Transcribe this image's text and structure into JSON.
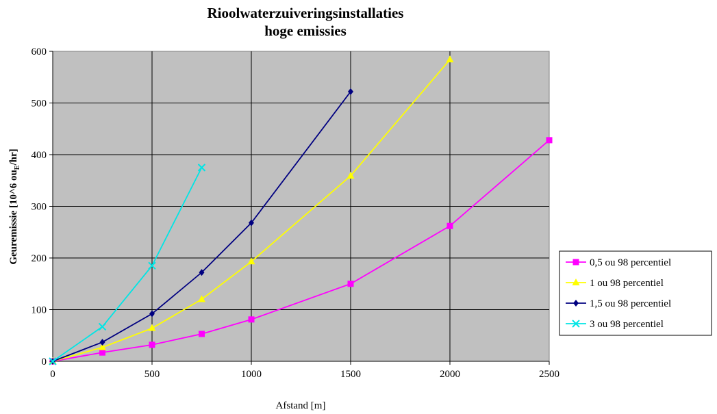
{
  "chart_data": {
    "type": "line",
    "title": "Rioolwaterzuiveringsinstallaties",
    "subtitle": "hoge emissies",
    "xlabel": "Afstand [m]",
    "ylabel_main": "Geuremissie [10^6 ou",
    "ylabel_sub": "E",
    "ylabel_end": "/hr]",
    "xlim": [
      0,
      2500
    ],
    "ylim": [
      0,
      600
    ],
    "xticks": [
      0,
      500,
      1000,
      1500,
      2000,
      2500
    ],
    "yticks": [
      0,
      100,
      200,
      300,
      400,
      500,
      600
    ],
    "grid": true,
    "legend_position": "right",
    "plot_background": "#c0c0c0",
    "series": [
      {
        "name": "0,5 ou 98 percentiel",
        "color": "#ff00ff",
        "marker": "square",
        "x": [
          0,
          250,
          500,
          750,
          1000,
          1500,
          2000,
          2500
        ],
        "y": [
          0,
          17,
          32,
          53,
          81,
          150,
          262,
          428
        ]
      },
      {
        "name": "1 ou 98 percentiel",
        "color": "#ffff00",
        "marker": "triangle",
        "x": [
          0,
          250,
          500,
          750,
          1000,
          1500,
          2000
        ],
        "y": [
          0,
          27,
          64,
          120,
          193,
          359,
          584
        ]
      },
      {
        "name": "1,5 ou 98 percentiel",
        "color": "#000080",
        "marker": "diamond",
        "x": [
          0,
          250,
          500,
          750,
          1000,
          1500
        ],
        "y": [
          0,
          37,
          92,
          172,
          268,
          522
        ]
      },
      {
        "name": "3 ou 98 percentiel",
        "color": "#00e5e5",
        "marker": "x",
        "x": [
          0,
          250,
          500,
          750
        ],
        "y": [
          0,
          67,
          185,
          375
        ]
      }
    ]
  }
}
